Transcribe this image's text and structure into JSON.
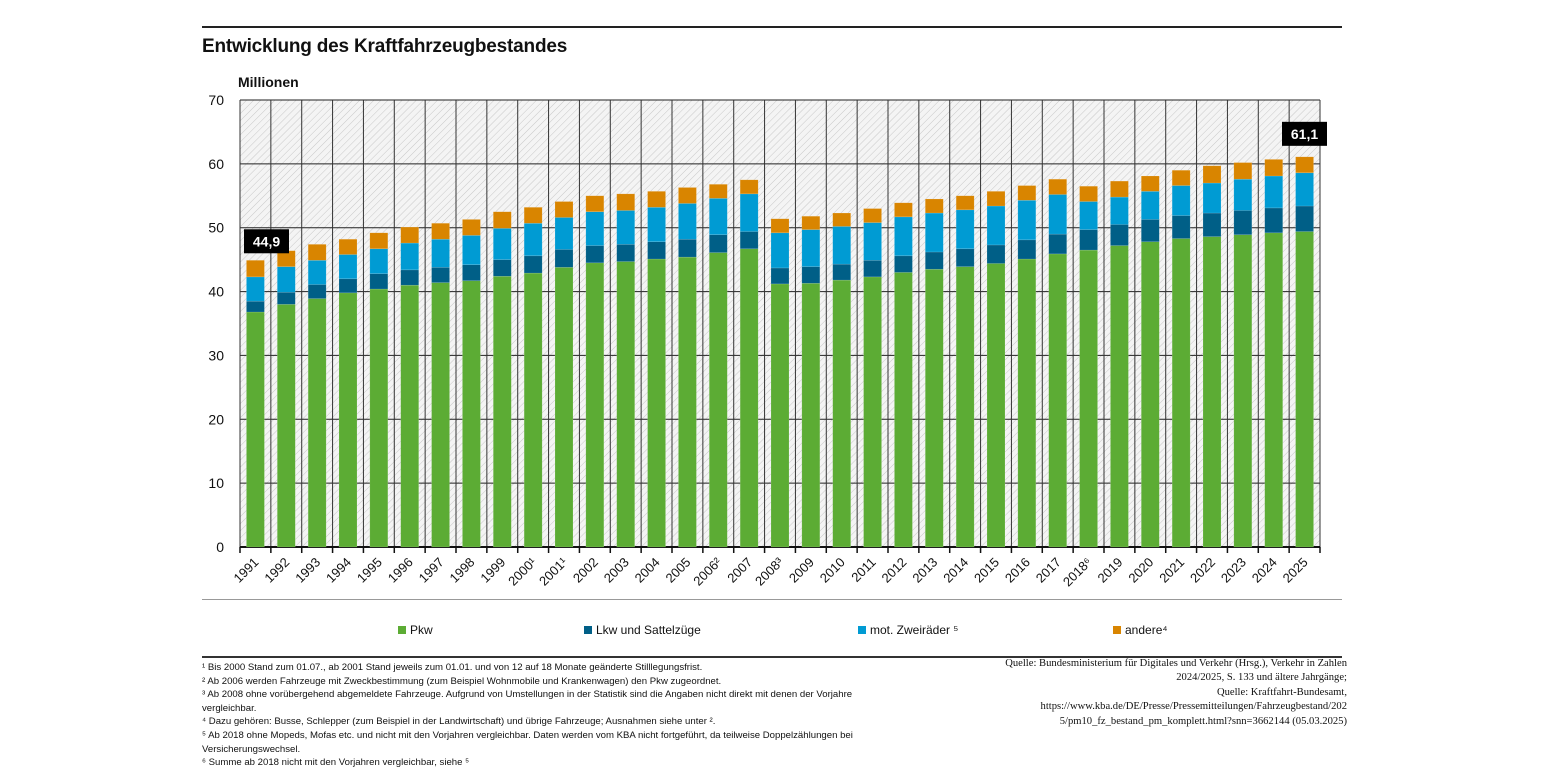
{
  "title": "Entwicklung des Kraftfahrzeugbestandes",
  "chart_data": {
    "type": "bar",
    "stacked": true,
    "title": "Entwicklung des Kraftfahrzeugbestandes",
    "ylabel": "Millionen",
    "xlabel": "",
    "ylim": [
      0,
      70
    ],
    "yticks": [
      0,
      10,
      20,
      30,
      40,
      50,
      60,
      70
    ],
    "grid": true,
    "legend_position": "bottom",
    "categories": [
      "1991",
      "1992",
      "1993",
      "1994",
      "1995",
      "1996",
      "1997",
      "1998",
      "1999",
      "2000¹",
      "2001¹",
      "2002",
      "2003",
      "2004",
      "2005",
      "2006²",
      "2007",
      "2008³",
      "2009",
      "2010",
      "2011",
      "2012",
      "2013",
      "2014",
      "2015",
      "2016",
      "2017",
      "2018⁶",
      "2019",
      "2020",
      "2021",
      "2022",
      "2023",
      "2024",
      "2025"
    ],
    "series": [
      {
        "name": "Pkw",
        "color": "#5cac34",
        "values": [
          36.8,
          38.0,
          38.9,
          39.8,
          40.4,
          41.0,
          41.4,
          41.7,
          42.4,
          42.9,
          43.8,
          44.5,
          44.7,
          45.1,
          45.4,
          46.1,
          46.7,
          41.2,
          41.3,
          41.8,
          42.3,
          43.0,
          43.5,
          43.9,
          44.4,
          45.1,
          45.9,
          46.5,
          47.2,
          47.8,
          48.3,
          48.6,
          48.9,
          49.2,
          49.4
        ]
      },
      {
        "name": "Lkw und Sattelzüge",
        "color": "#005f87",
        "values": [
          1.7,
          1.9,
          2.2,
          2.2,
          2.4,
          2.4,
          2.4,
          2.5,
          2.6,
          2.7,
          2.8,
          2.7,
          2.7,
          2.7,
          2.8,
          2.8,
          2.7,
          2.5,
          2.6,
          2.5,
          2.6,
          2.6,
          2.7,
          2.8,
          2.9,
          3.0,
          3.1,
          3.2,
          3.3,
          3.5,
          3.6,
          3.7,
          3.8,
          3.9,
          4.0
        ]
      },
      {
        "name": "mot. Zweiräder ⁵",
        "color": "#009bd3",
        "values": [
          3.8,
          4.0,
          3.8,
          3.8,
          3.9,
          4.2,
          4.4,
          4.6,
          4.9,
          5.1,
          5.0,
          5.3,
          5.3,
          5.4,
          5.6,
          5.7,
          5.9,
          5.5,
          5.8,
          5.9,
          5.9,
          6.1,
          6.1,
          6.1,
          6.1,
          6.2,
          6.2,
          4.4,
          4.3,
          4.4,
          4.7,
          4.7,
          4.9,
          5.0,
          5.2
        ]
      },
      {
        "name": "andere⁴",
        "color": "#d98500",
        "values": [
          2.6,
          2.5,
          2.5,
          2.4,
          2.5,
          2.5,
          2.5,
          2.5,
          2.6,
          2.5,
          2.5,
          2.5,
          2.6,
          2.5,
          2.5,
          2.2,
          2.2,
          2.2,
          2.1,
          2.1,
          2.2,
          2.2,
          2.2,
          2.2,
          2.3,
          2.3,
          2.4,
          2.4,
          2.5,
          2.4,
          2.4,
          2.7,
          2.6,
          2.6,
          2.5
        ]
      }
    ],
    "annotations": [
      {
        "category": "1991",
        "text": "44,9"
      },
      {
        "category": "2025",
        "text": "61,1"
      }
    ]
  },
  "legend": [
    "Pkw",
    "Lkw und Sattelzüge",
    "mot. Zweiräder ⁵",
    "andere⁴"
  ],
  "footnotes": [
    "¹ Bis 2000 Stand zum 01.07., ab 2001 Stand jeweils zum 01.01. und von 12 auf 18 Monate geänderte Stilllegungsfrist.",
    "² Ab 2006 werden Fahrzeuge mit Zweckbestimmung (zum Beispiel Wohnmobile und Krankenwagen) den Pkw zugeordnet.",
    "³ Ab 2008 ohne vorübergehend abgemeldete Fahrzeuge. Aufgrund von Umstellungen in der Statistik sind die Angaben nicht direkt mit denen der Vorjahre vergleichbar.",
    "⁴ Dazu gehören: Busse, Schlepper (zum Beispiel in der Landwirtschaft) und übrige Fahrzeuge; Ausnahmen siehe unter ².",
    "⁵ Ab 2018 ohne Mopeds, Mofas etc. und nicht mit den Vorjahren vergleichbar. Daten werden vom KBA nicht fortgeführt, da teilweise Doppelzählungen bei Versicherungswechsel.",
    "⁶ Summe ab 2018 nicht mit den Vorjahren vergleichbar, siehe ⁵"
  ],
  "source": [
    "Quelle: Bundesministerium für Digitales und Verkehr (Hrsg.), Verkehr in Zahlen",
    "2024/2025, S. 133 und ältere Jahrgänge;",
    "Quelle: Kraftfahrt-Bundesamt,",
    "https://www.kba.de/DE/Presse/Pressemitteilungen/Fahrzeugbestand/202",
    "5/pm10_fz_bestand_pm_komplett.html?snn=3662144 (05.03.2025)"
  ]
}
